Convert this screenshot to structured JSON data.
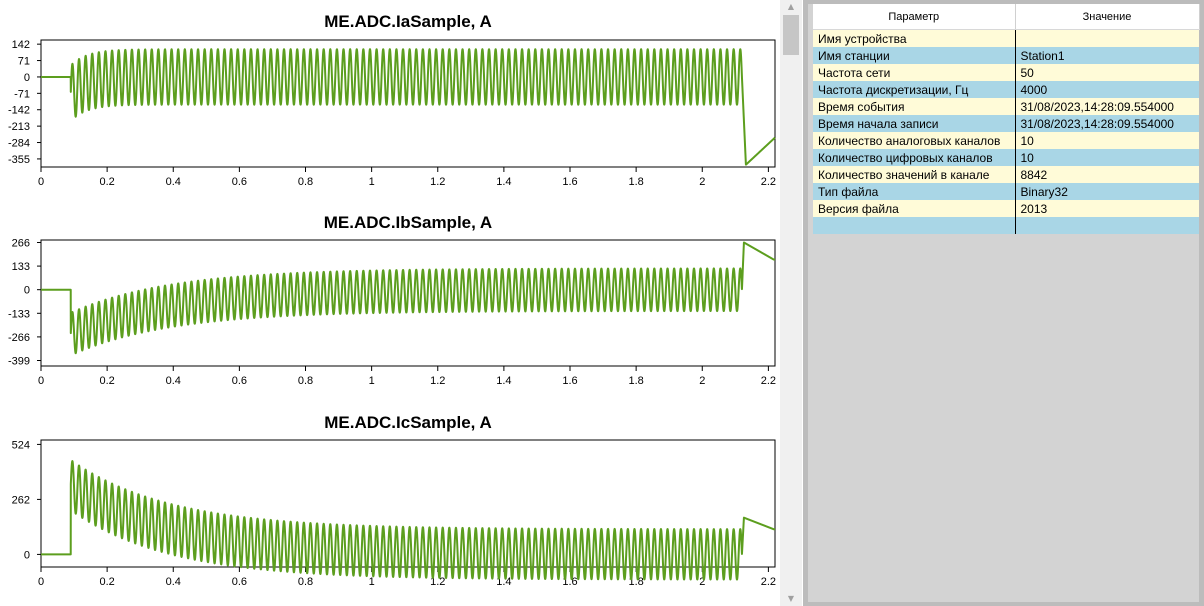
{
  "charts": [
    {
      "title": "ME.ADC.IaSample, A",
      "y_ticks": [
        "142",
        "71",
        "0",
        "-71",
        "-142",
        "-213",
        "-284",
        "-355"
      ],
      "x_ticks": [
        "0",
        "0.2",
        "0.4",
        "0.6",
        "0.8",
        "1",
        "1.2",
        "1.4",
        "1.6",
        "1.8",
        "2",
        "2.2"
      ]
    },
    {
      "title": "ME.ADC.IbSample, A",
      "y_ticks": [
        "266",
        "133",
        "0",
        "-133",
        "-266",
        "-399"
      ],
      "x_ticks": [
        "0",
        "0.2",
        "0.4",
        "0.6",
        "0.8",
        "1",
        "1.2",
        "1.4",
        "1.6",
        "1.8",
        "2",
        "2.2"
      ]
    },
    {
      "title": "ME.ADC.IcSample, A",
      "y_ticks": [
        "524",
        "262",
        "0"
      ],
      "x_ticks": [
        "0",
        "0.2",
        "0.4",
        "0.6",
        "0.8",
        "1",
        "1.2",
        "1.4",
        "1.6",
        "1.8",
        "2",
        "2.2"
      ]
    }
  ],
  "chart_data": [
    {
      "type": "line",
      "title": "ME.ADC.IaSample, A",
      "xlim": [
        0,
        2.22
      ],
      "ylim": [
        -390,
        160
      ],
      "series_color": "#5c9e1e",
      "signal": {
        "fault_start": 0.09,
        "fault_end": 2.12,
        "frequency_hz": 50,
        "steady_amplitude": 120,
        "dc_offset_initial": -70,
        "dc_tau": 0.05,
        "post_fault_min": -380,
        "post_fault_end": -260
      }
    },
    {
      "type": "line",
      "title": "ME.ADC.IbSample, A",
      "xlim": [
        0,
        2.22
      ],
      "ylim": [
        -430,
        280
      ],
      "series_color": "#5c9e1e",
      "signal": {
        "fault_start": 0.09,
        "fault_end": 2.12,
        "frequency_hz": 50,
        "steady_amplitude": 120,
        "dc_offset_initial": -250,
        "dc_tau": 0.3,
        "post_fault_max": 266,
        "post_fault_end": 170
      }
    },
    {
      "type": "line",
      "title": "ME.ADC.IcSample, A",
      "xlim": [
        0,
        2.22
      ],
      "ylim": [
        -60,
        545
      ],
      "series_color": "#5c9e1e",
      "signal": {
        "fault_start": 0.09,
        "fault_end": 2.12,
        "frequency_hz": 50,
        "steady_amplitude": 120,
        "dc_offset_initial": 330,
        "dc_tau": 0.3,
        "post_fault_max": 175,
        "post_fault_end": 120
      }
    }
  ],
  "table": {
    "header": {
      "param": "Параметр",
      "value": "Значение"
    },
    "rows": [
      {
        "param": "Имя устройства",
        "value": ""
      },
      {
        "param": "Имя станции",
        "value": "Station1"
      },
      {
        "param": "Частота сети",
        "value": "50"
      },
      {
        "param": "Частота дискретизации, Гц",
        "value": "4000"
      },
      {
        "param": "Время события",
        "value": "31/08/2023,14:28:09.554000"
      },
      {
        "param": "Время начала записи",
        "value": "31/08/2023,14:28:09.554000"
      },
      {
        "param": "Количество аналоговых каналов",
        "value": "10"
      },
      {
        "param": "Количество цифровых каналов",
        "value": "10"
      },
      {
        "param": "Количество значений в канале",
        "value": "8842"
      },
      {
        "param": "Тип файла",
        "value": "Binary32"
      },
      {
        "param": "Версия файла",
        "value": "2013"
      },
      {
        "param": "",
        "value": ""
      }
    ]
  },
  "scrollbar": {
    "up_icon": "triangle-up-icon",
    "down_icon": "triangle-down-icon"
  }
}
